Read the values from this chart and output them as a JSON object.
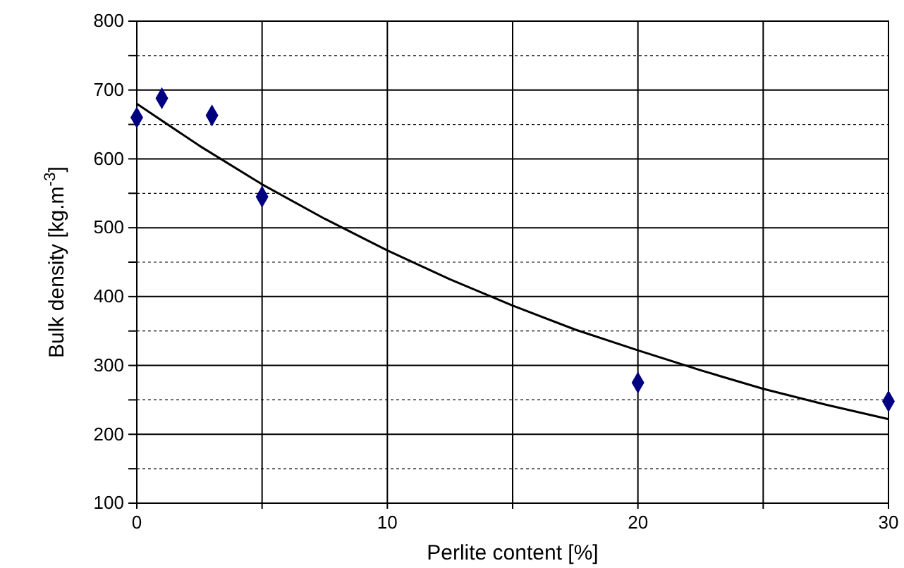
{
  "chart_data": {
    "type": "scatter",
    "xlabel": "Perlite content [%]",
    "ylabel": "Bulk density [kg.m$^{-3}$]",
    "x": [
      0,
      1,
      3,
      5,
      20,
      30
    ],
    "series": [
      {
        "color": "#000080",
        "marker": "diamond",
        "values": [
          660,
          688,
          663,
          545,
          275,
          248
        ]
      },
      {
        "type": "line",
        "color": "#000000",
        "marker": "none",
        "line_style": "solid",
        "x": [
          0,
          2.5,
          5,
          7.5,
          10,
          12.5,
          15,
          17.5,
          20,
          22.5,
          25,
          27.5,
          30
        ],
        "values": [
          680,
          619,
          563,
          513,
          467,
          425,
          387,
          352,
          322,
          293,
          266,
          243,
          222
        ]
      }
    ],
    "xlim": [
      0,
      30
    ],
    "xticks": [
      0,
      {
        "value": 5,
        "label": null
      },
      10,
      {
        "value": 15,
        "label": null
      },
      20,
      {
        "value": 25,
        "label": null
      },
      30
    ],
    "ylim": [
      100,
      800
    ],
    "yticks": [
      100,
      {
        "value": 150,
        "label": null
      },
      200,
      {
        "value": 250,
        "label": null
      },
      300,
      {
        "value": 350,
        "label": null
      },
      400,
      {
        "value": 450,
        "label": null
      },
      500,
      {
        "value": 550,
        "label": null
      },
      600,
      {
        "value": 650,
        "label": null
      },
      700,
      {
        "value": 750,
        "label": null
      },
      800
    ],
    "grid": true
  }
}
